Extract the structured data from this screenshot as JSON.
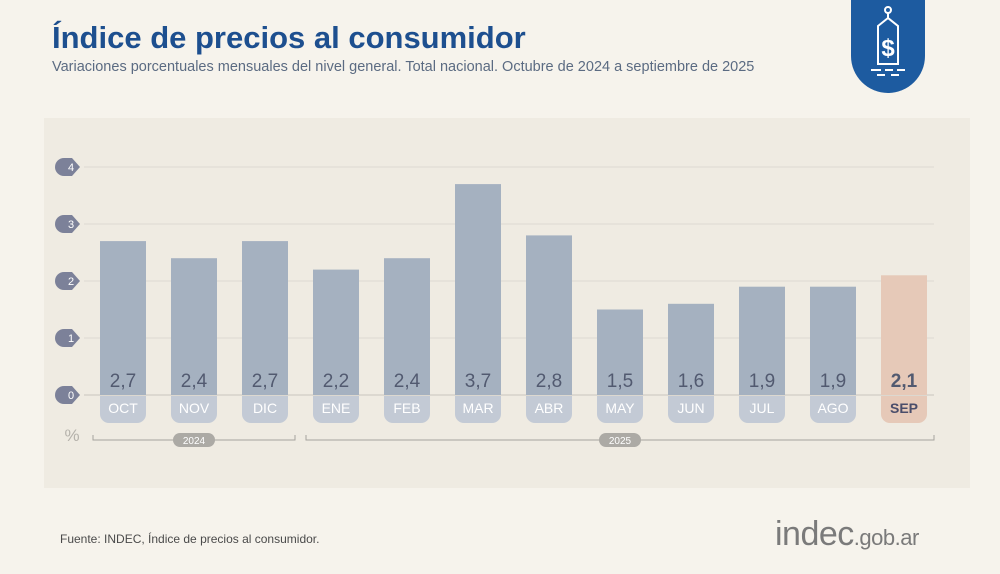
{
  "header": {
    "title": "Índice de precios al consumidor",
    "subtitle": "Variaciones porcentuales mensuales del nivel general. Total nacional. Octubre de 2024 a septiembre de 2025"
  },
  "footer": {
    "source": "Fuente: INDEC, Índice de precios al consumidor.",
    "logo_main": "indec",
    "logo_suffix": ".gob.ar"
  },
  "icon": "price-tag-dollar-icon",
  "colors": {
    "bar": "#a5b1c0",
    "highlight": "#e6c9b8",
    "label_pill": "#c3cad5",
    "title": "#1d4f8f",
    "badge": "#1d5ba0"
  },
  "chart_data": {
    "type": "bar",
    "categories": [
      "OCT",
      "NOV",
      "DIC",
      "ENE",
      "FEB",
      "MAR",
      "ABR",
      "MAY",
      "JUN",
      "JUL",
      "AGO",
      "SEP"
    ],
    "values": [
      2.7,
      2.4,
      2.7,
      2.2,
      2.4,
      3.7,
      2.8,
      1.5,
      1.6,
      1.9,
      1.9,
      2.1
    ],
    "value_labels": [
      "2,7",
      "2,4",
      "2,7",
      "2,2",
      "2,4",
      "3,7",
      "2,8",
      "1,5",
      "1,6",
      "1,9",
      "1,9",
      "2,1"
    ],
    "highlight": "SEP",
    "ylabel": "%",
    "yticks": [
      0,
      1,
      2,
      3,
      4
    ],
    "ylim": [
      0,
      4
    ],
    "grid": true,
    "year_groups": [
      {
        "label": "2024",
        "from": "OCT",
        "to": "DIC"
      },
      {
        "label": "2025",
        "from": "ENE",
        "to": "SEP"
      }
    ]
  }
}
